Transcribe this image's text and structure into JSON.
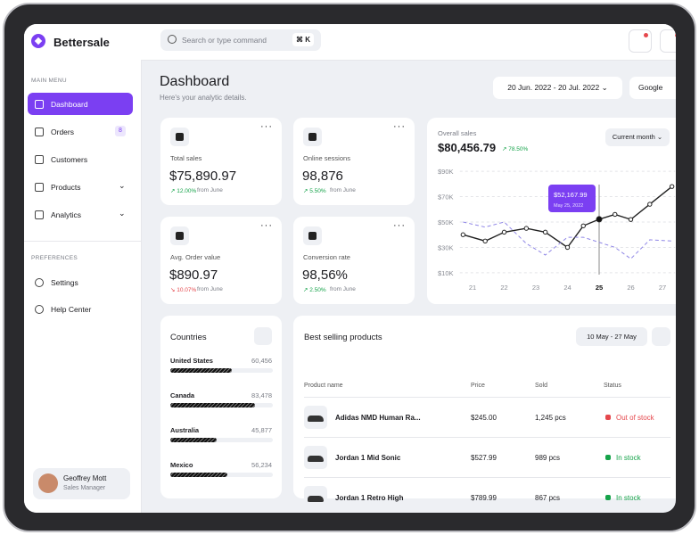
{
  "brand": "Bettersale",
  "search": {
    "placeholder": "Search or type command",
    "shortcut": "⌘ K"
  },
  "sidebar": {
    "main_menu_label": "MAIN MENU",
    "menu": [
      {
        "label": "Dashboard",
        "active": true
      },
      {
        "label": "Orders",
        "badge": "8"
      },
      {
        "label": "Customers"
      },
      {
        "label": "Products",
        "expand": true
      },
      {
        "label": "Analytics",
        "expand": true
      }
    ],
    "preferences_label": "PREFERENCES",
    "preferences": [
      "Settings",
      "Help Center"
    ],
    "user": {
      "name": "Geoffrey Mott",
      "role": "Sales Manager"
    }
  },
  "header": {
    "title": "Dashboard",
    "subtitle": "Here's your analytic details.",
    "date_range": "20 Jun. 2022 - 20 Jul. 2022",
    "source": "Google"
  },
  "stats": [
    {
      "label": "Total sales",
      "value": "$75,890.97",
      "change": "12.00%",
      "note": "from June",
      "trend": "up"
    },
    {
      "label": "Online sessions",
      "value": "98,876",
      "change": "5.50%",
      "note": "from June",
      "trend": "up"
    },
    {
      "label": "Avg. Order value",
      "value": "$890.97",
      "change": "10.07%",
      "note": "from June",
      "trend": "down"
    },
    {
      "label": "Conversion rate",
      "value": "98,56%",
      "change": "2.50%",
      "note": "from June",
      "trend": "up"
    }
  ],
  "overall_sales": {
    "label": "Overall sales",
    "value": "$80,456.79",
    "change": "78.50%",
    "period": "Current month",
    "chart_data": {
      "type": "line",
      "x": [
        20.7,
        21.4,
        22,
        22.7,
        23.3,
        24,
        24.5,
        25,
        25.5,
        26,
        26.6,
        27.3
      ],
      "series": [
        {
          "color": "#222222",
          "values": [
            40,
            35,
            42,
            45,
            42,
            30,
            47,
            52.17,
            56,
            52,
            64,
            78
          ]
        },
        {
          "color": "#8f86e6",
          "dashed": true,
          "values": [
            50,
            46,
            50,
            33,
            24,
            38,
            38,
            34,
            30,
            21,
            36,
            35
          ]
        }
      ],
      "xlim": [
        20.6,
        27.4
      ],
      "xticks": [
        21,
        22,
        23,
        24,
        25,
        26,
        27
      ],
      "ylim": [
        5,
        95
      ],
      "yticks": [
        {
          "value": 10,
          "label": "$10K"
        },
        {
          "value": 30,
          "label": "$30K"
        },
        {
          "value": 50,
          "label": "$50K"
        },
        {
          "value": 70,
          "label": "$70K"
        },
        {
          "value": 90,
          "label": "$90K"
        }
      ],
      "grid": true,
      "annotation": {
        "x": 25,
        "label": "$52,167.99",
        "date": "May 25, 2022"
      }
    }
  },
  "countries": {
    "title": "Countries",
    "rows": [
      {
        "name": "United States",
        "value": 60456,
        "value_label": "60,456"
      },
      {
        "name": "Canada",
        "value": 83478,
        "value_label": "83,478"
      },
      {
        "name": "Australia",
        "value": 45877,
        "value_label": "45,877"
      },
      {
        "name": "Mexico",
        "value": 56234,
        "value_label": "56,234"
      }
    ]
  },
  "products": {
    "title": "Best selling products",
    "date_range": "10 May - 27 May",
    "columns": [
      "Product name",
      "Price",
      "Sold",
      "Status"
    ],
    "rows": [
      {
        "name": "Adidas NMD Human Ra...",
        "price": "$245.00",
        "sold": "1,245 pcs",
        "status": "Out of stock",
        "status_color": "#e5484d"
      },
      {
        "name": "Jordan 1 Mid Sonic",
        "price": "$527.99",
        "sold": "989 pcs",
        "status": "In stock",
        "status_color": "#16a34a"
      },
      {
        "name": "Jordan 1 Retro High",
        "price": "$789.99",
        "sold": "867 pcs",
        "status": "In stock",
        "status_color": "#16a34a"
      }
    ]
  }
}
